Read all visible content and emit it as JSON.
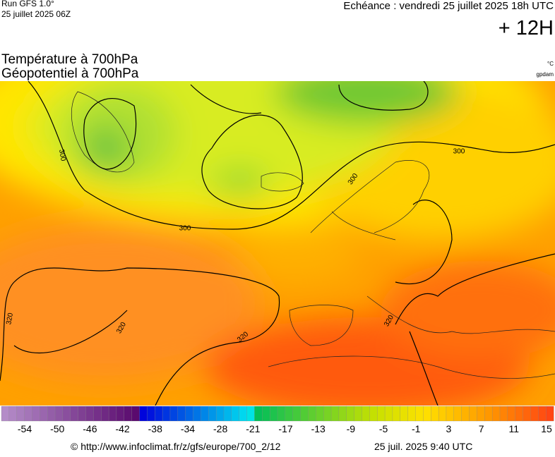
{
  "header": {
    "run": "Run GFS 1.0°",
    "run_date": "25 juillet 2025 06Z",
    "valid": "Echéance : vendredi 25 juillet 2025 18h UTC",
    "lead": "+ 12H"
  },
  "titles": {
    "temperature": "Température à 700hPa",
    "geopotential": "Géopotentiel à 700hPa",
    "unit_temperature": "°C",
    "unit_geopotential": "gpdam"
  },
  "map": {
    "contour_labels": [
      300,
      300,
      300,
      300,
      320,
      320,
      320,
      320
    ]
  },
  "colorbar": {
    "ticks": [
      -54,
      -50,
      -46,
      -42,
      -38,
      -34,
      -28,
      -21,
      -17,
      -13,
      -9,
      -5,
      -1,
      3,
      7,
      11,
      15
    ]
  },
  "footer": {
    "source": "© http://www.infoclimat.fr/z/gfs/europe/700_2/12",
    "timestamp": "25 juil. 2025  9:40 UTC"
  }
}
